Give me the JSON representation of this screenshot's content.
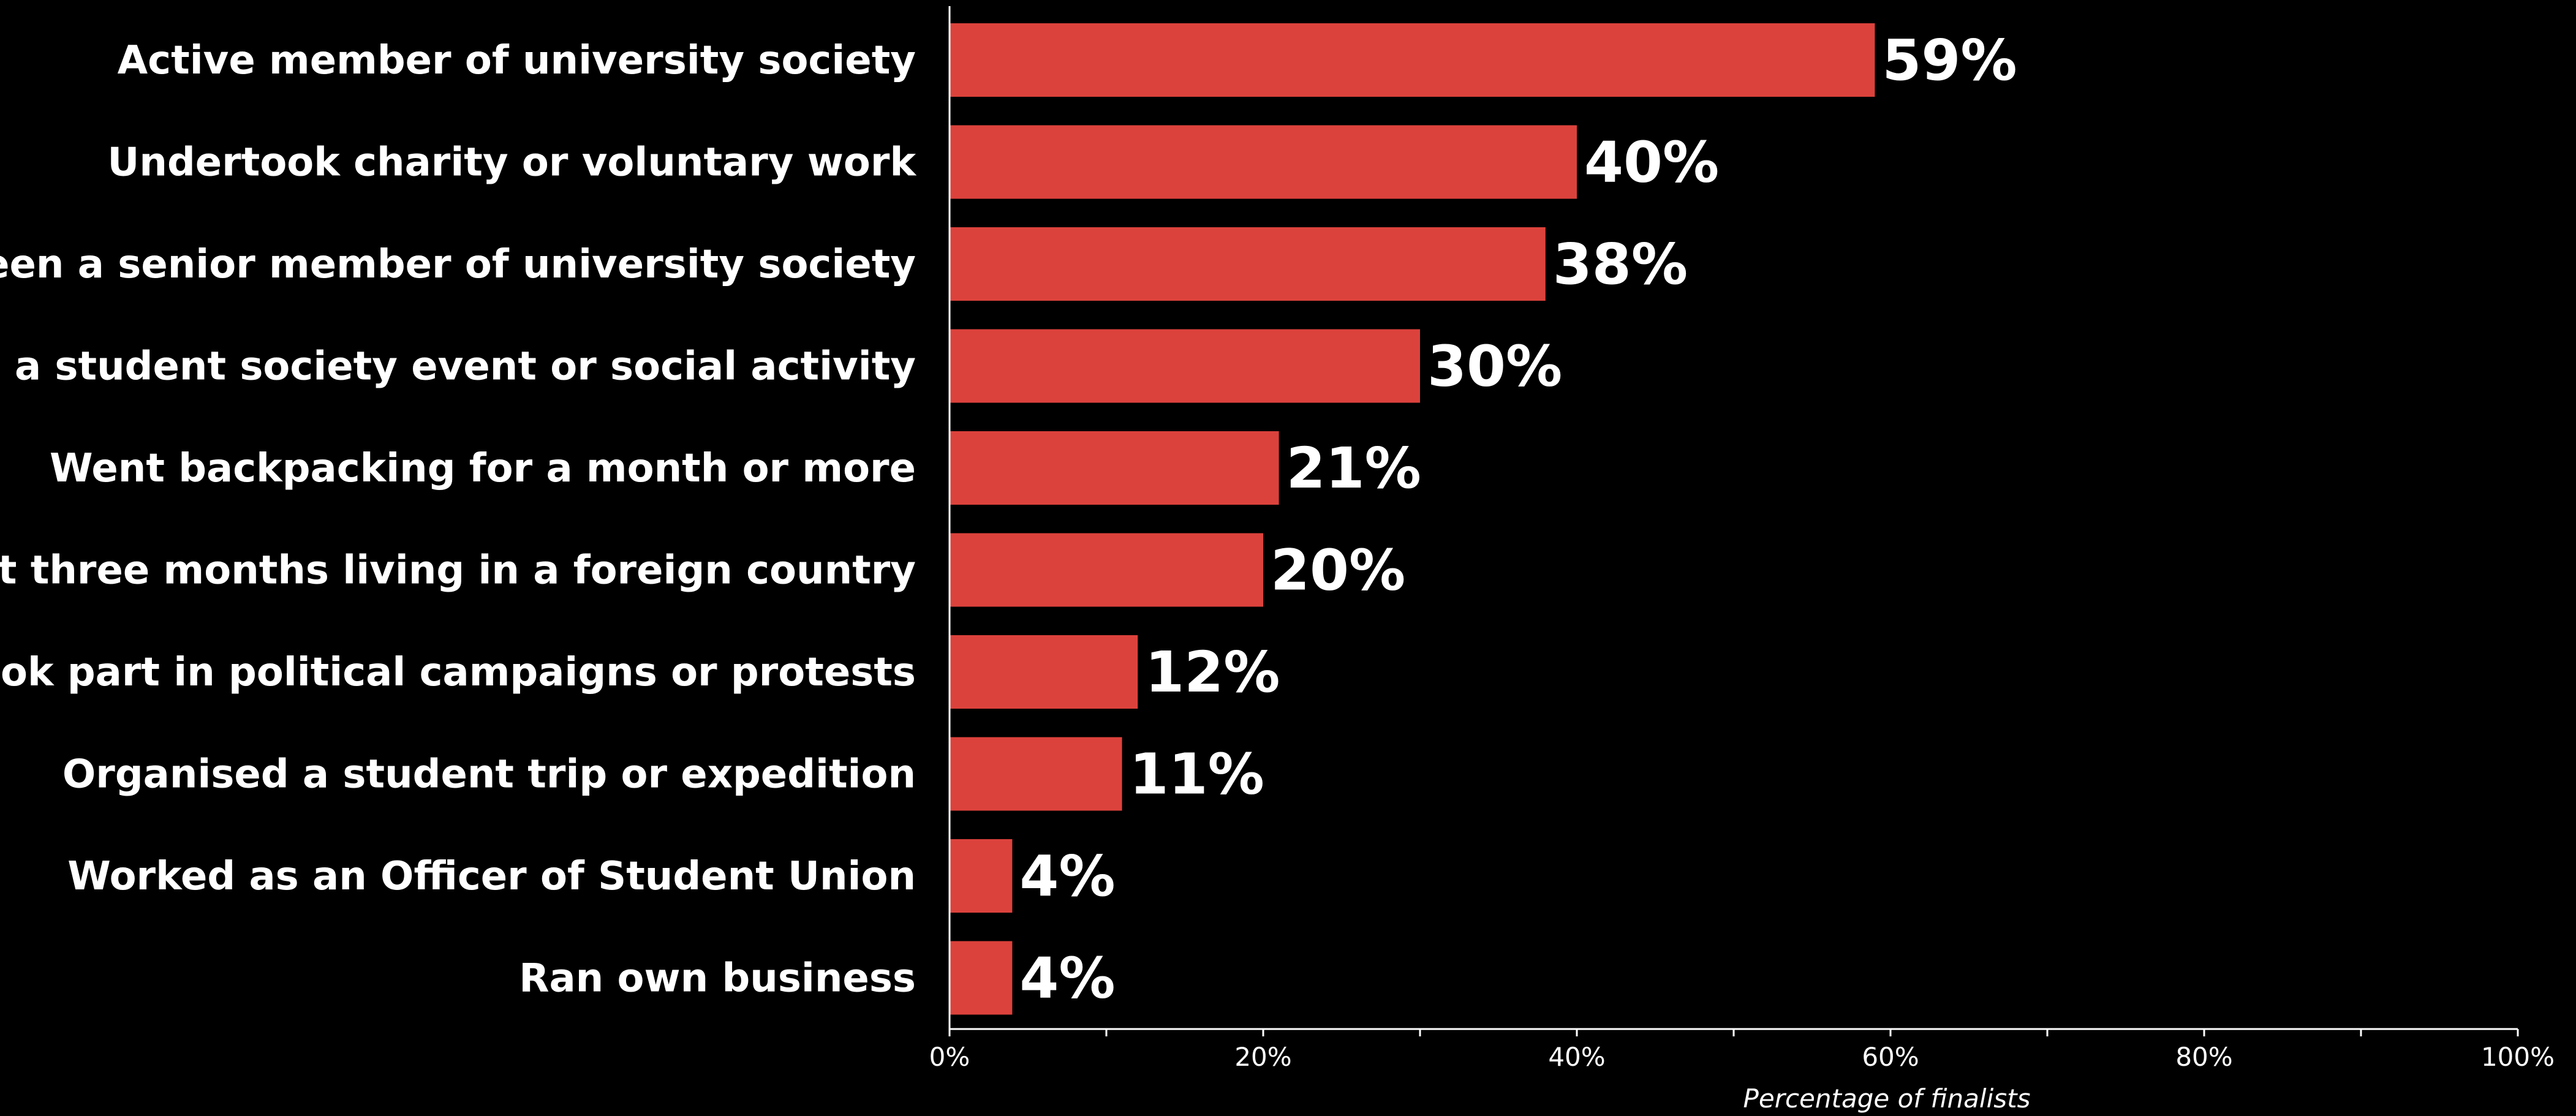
{
  "colors": {
    "background": "#000000",
    "bar": "#dc423c",
    "text": "#ffffff"
  },
  "chart_data": {
    "type": "bar",
    "orientation": "horizontal",
    "categories": [
      "Active member of university society",
      "Undertook charity or voluntary work",
      "Been a senior member of university society",
      "Ran a student society event or social activity",
      "Went backpacking for a month or more",
      "Spent three months living in a foreign country",
      "Took part in political campaigns or protests",
      "Organised a student trip or expedition",
      "Worked as an Officer of Student Union",
      "Ran own business"
    ],
    "values": [
      59,
      40,
      38,
      30,
      21,
      20,
      12,
      11,
      4,
      4
    ],
    "data_labels": [
      "59%",
      "40%",
      "38%",
      "30%",
      "21%",
      "20%",
      "12%",
      "11%",
      "4%",
      "4%"
    ],
    "xlabel": "Percentage of finalists",
    "ylabel": "",
    "xlim": [
      0,
      100
    ],
    "x_ticks": [
      0,
      20,
      40,
      60,
      80,
      100
    ],
    "x_tick_labels": [
      "0%",
      "20%",
      "40%",
      "60%",
      "80%",
      "100%"
    ],
    "grid": false,
    "legend": "none"
  }
}
